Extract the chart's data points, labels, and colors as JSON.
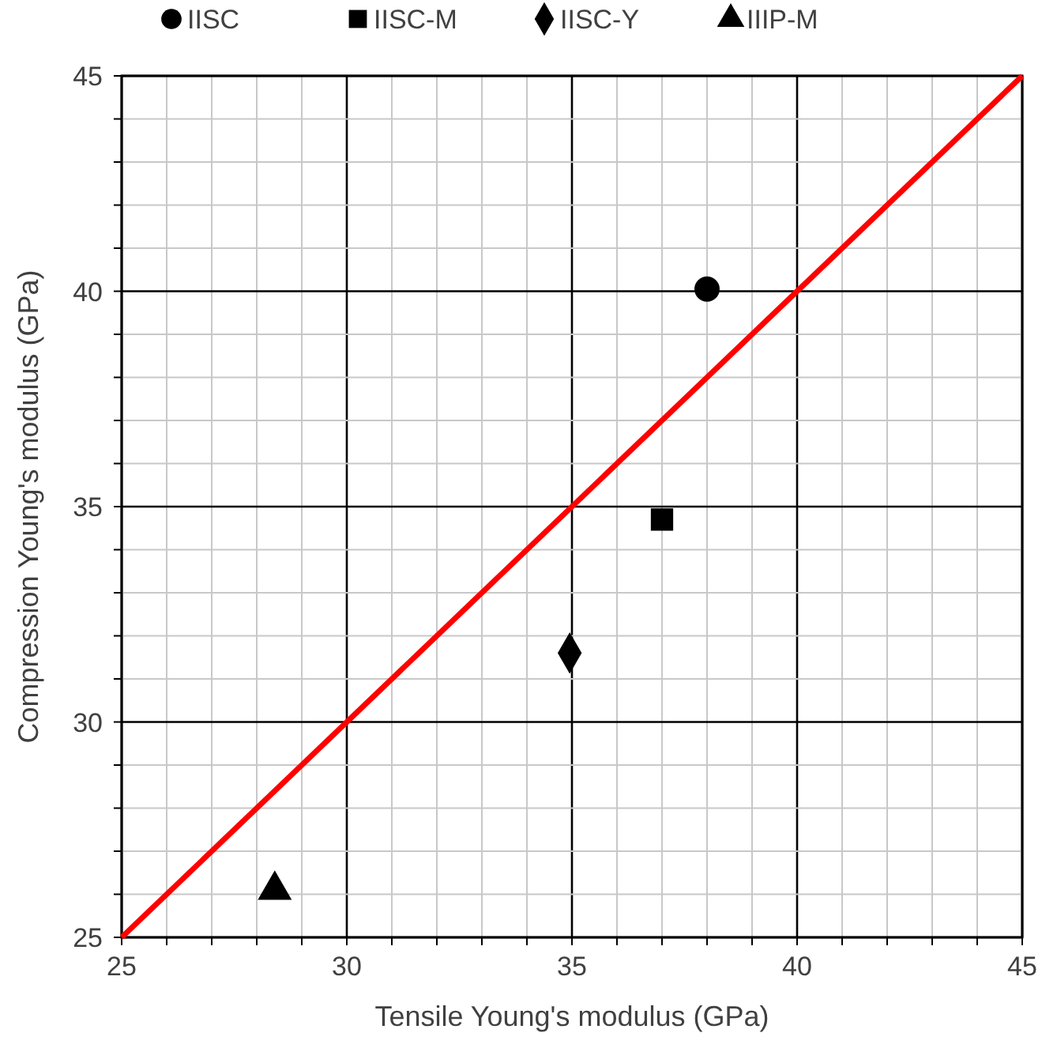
{
  "chart_data": {
    "type": "scatter",
    "xlabel": "Tensile Young's modulus (GPa)",
    "ylabel": "Compression Young's modulus (GPa)",
    "xlim": [
      25,
      45
    ],
    "ylim": [
      25,
      45
    ],
    "xticks": [
      25,
      {
        "value": 26,
        "label": null
      },
      {
        "value": 27,
        "label": null
      },
      {
        "value": 28,
        "label": null
      },
      {
        "value": 29,
        "label": null
      },
      30,
      {
        "value": 31,
        "label": null
      },
      {
        "value": 32,
        "label": null
      },
      {
        "value": 33,
        "label": null
      },
      {
        "value": 34,
        "label": null
      },
      35,
      {
        "value": 36,
        "label": null
      },
      {
        "value": 37,
        "label": null
      },
      {
        "value": 38,
        "label": null
      },
      {
        "value": 39,
        "label": null
      },
      40,
      {
        "value": 41,
        "label": null
      },
      {
        "value": 42,
        "label": null
      },
      {
        "value": 43,
        "label": null
      },
      {
        "value": 44,
        "label": null
      },
      45
    ],
    "yticks": [
      25,
      {
        "value": 26,
        "label": null
      },
      {
        "value": 27,
        "label": null
      },
      {
        "value": 28,
        "label": null
      },
      {
        "value": 29,
        "label": null
      },
      30,
      {
        "value": 31,
        "label": null
      },
      {
        "value": 32,
        "label": null
      },
      {
        "value": 33,
        "label": null
      },
      {
        "value": 34,
        "label": null
      },
      35,
      {
        "value": 36,
        "label": null
      },
      {
        "value": 37,
        "label": null
      },
      {
        "value": 38,
        "label": null
      },
      {
        "value": 39,
        "label": null
      },
      40,
      {
        "value": 41,
        "label": null
      },
      {
        "value": 42,
        "label": null
      },
      {
        "value": 43,
        "label": null
      },
      {
        "value": 44,
        "label": null
      },
      45
    ],
    "grid": true,
    "legend": "top",
    "series": [
      {
        "name": "IISC",
        "marker": "circle",
        "color": "#000000",
        "x": [
          38.0
        ],
        "values": [
          40.05
        ]
      },
      {
        "name": "IISC-M",
        "marker": "square",
        "color": "#000000",
        "x": [
          37.0
        ],
        "values": [
          34.7
        ]
      },
      {
        "name": "IISC-Y",
        "marker": "diamond",
        "color": "#000000",
        "x": [
          34.95
        ],
        "values": [
          31.6
        ]
      },
      {
        "name": "IIIP-M",
        "marker": "triangle",
        "color": "#000000",
        "x": [
          28.4
        ],
        "values": [
          26.1
        ]
      },
      {
        "type": "line",
        "color": "#ff0000",
        "x": [
          25,
          45
        ],
        "values": [
          25,
          45
        ]
      }
    ]
  }
}
